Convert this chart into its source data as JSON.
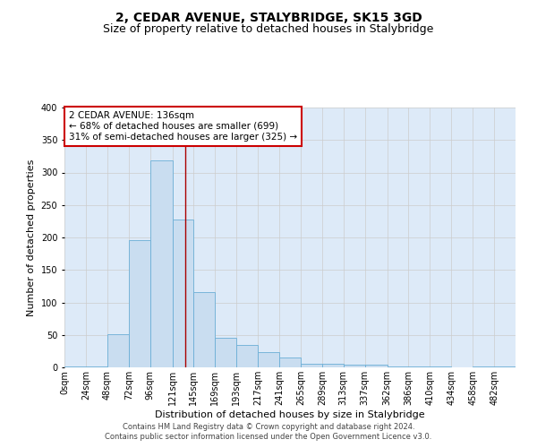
{
  "title_line1": "2, CEDAR AVENUE, STALYBRIDGE, SK15 3GD",
  "title_line2": "Size of property relative to detached houses in Stalybridge",
  "xlabel": "Distribution of detached houses by size in Stalybridge",
  "ylabel": "Number of detached properties",
  "bin_edges": [
    0,
    24,
    48,
    72,
    96,
    121,
    145,
    169,
    193,
    217,
    241,
    265,
    289,
    313,
    337,
    362,
    386,
    410,
    434,
    458,
    482,
    506
  ],
  "bar_heights": [
    1,
    1,
    51,
    196,
    318,
    228,
    116,
    46,
    35,
    24,
    15,
    6,
    6,
    4,
    4,
    1,
    1,
    1,
    0,
    1,
    1
  ],
  "tick_labels": [
    "0sqm",
    "24sqm",
    "48sqm",
    "72sqm",
    "96sqm",
    "121sqm",
    "145sqm",
    "169sqm",
    "193sqm",
    "217sqm",
    "241sqm",
    "265sqm",
    "289sqm",
    "313sqm",
    "337sqm",
    "362sqm",
    "386sqm",
    "410sqm",
    "434sqm",
    "458sqm",
    "482sqm"
  ],
  "bar_color": "#c9ddf0",
  "bar_edge_color": "#6baed6",
  "red_line_x": 136,
  "annotation_title": "2 CEDAR AVENUE: 136sqm",
  "annotation_line2": "← 68% of detached houses are smaller (699)",
  "annotation_line3": "31% of semi-detached houses are larger (325) →",
  "annotation_box_color": "#ffffff",
  "annotation_box_edge": "#cc0000",
  "ylim": [
    0,
    400
  ],
  "yticks": [
    0,
    50,
    100,
    150,
    200,
    250,
    300,
    350,
    400
  ],
  "grid_color": "#cccccc",
  "background_color": "#ddeaf8",
  "footer_line1": "Contains HM Land Registry data © Crown copyright and database right 2024.",
  "footer_line2": "Contains public sector information licensed under the Open Government Licence v3.0.",
  "title_fontsize": 10,
  "subtitle_fontsize": 9,
  "axis_label_fontsize": 8,
  "tick_fontsize": 7,
  "annotation_fontsize": 7.5,
  "footer_fontsize": 6
}
